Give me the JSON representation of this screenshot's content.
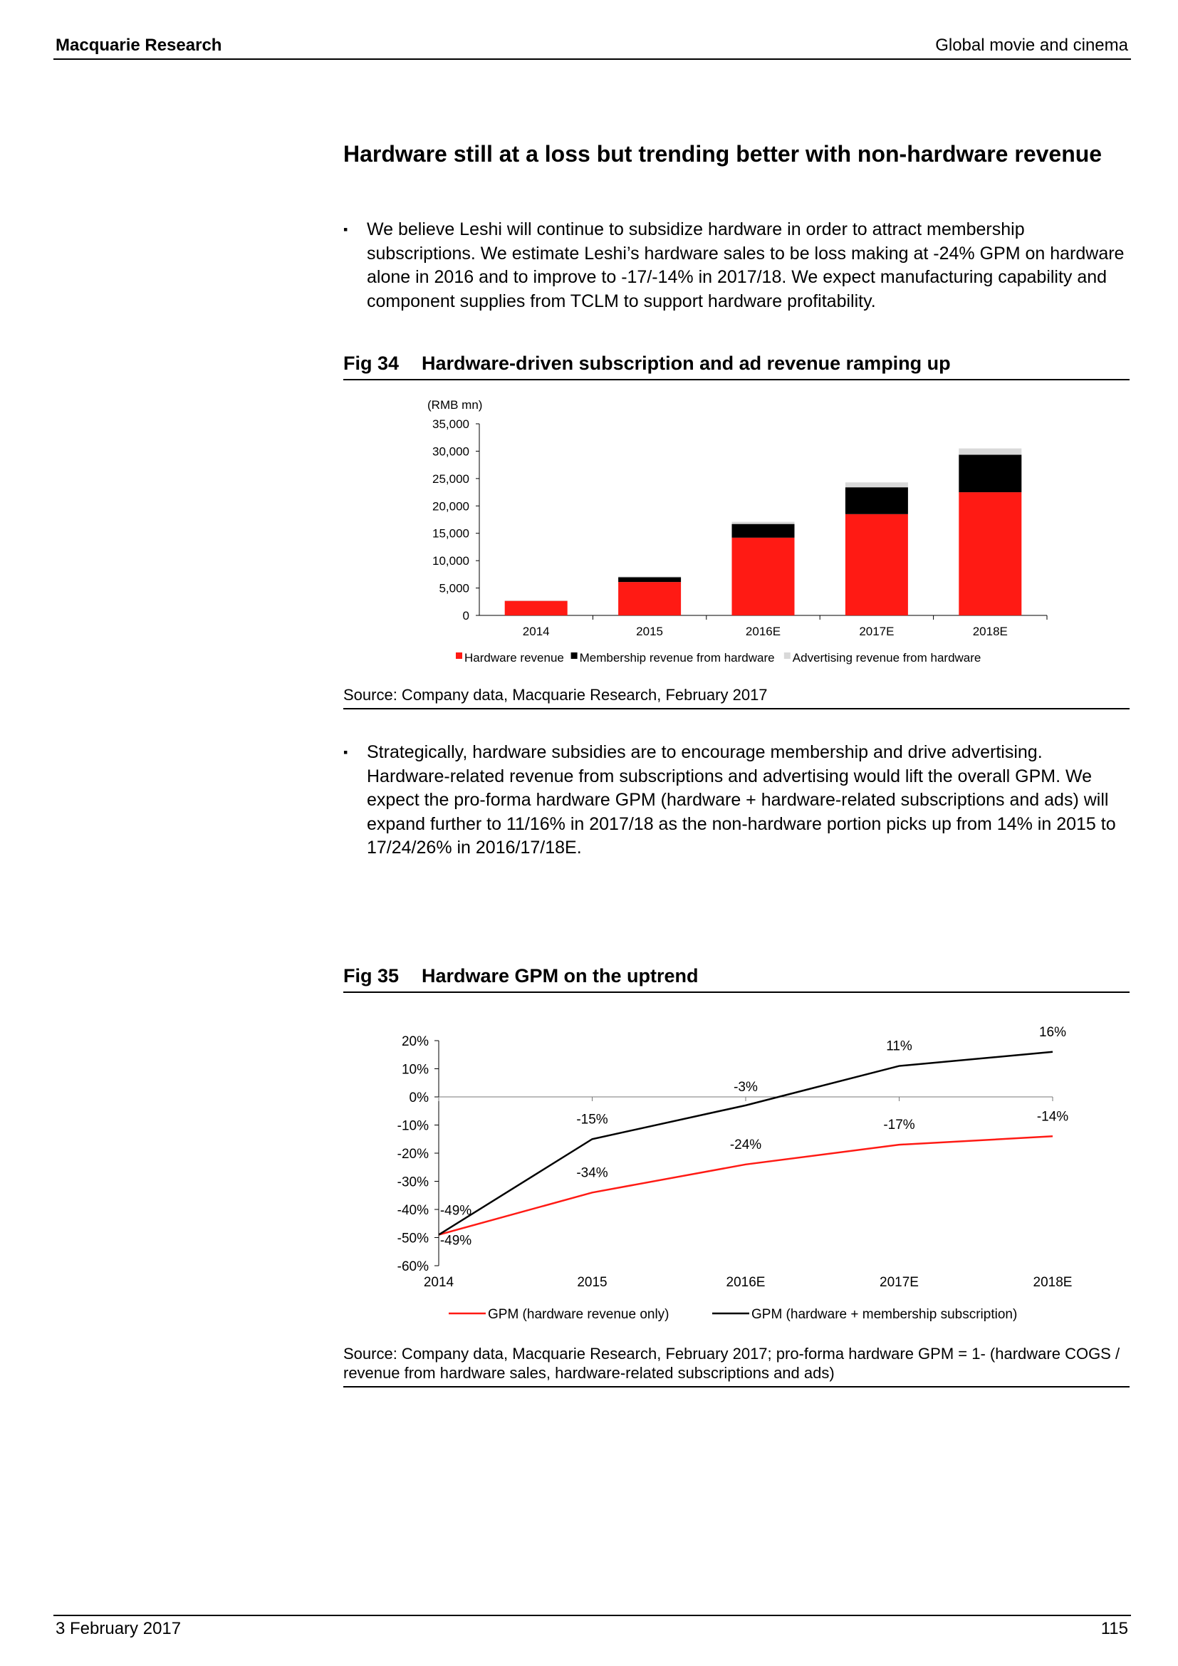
{
  "header": {
    "left": "Macquarie Research",
    "right": "Global movie and cinema"
  },
  "title": "Hardware still at a loss but trending better with non-hardware revenue",
  "bullets": [
    "We believe Leshi will continue to subsidize hardware in order to attract membership subscriptions. We estimate Leshi’s hardware sales to be loss making at -24% GPM on hardware alone in 2016 and to improve to -17/-14% in 2017/18. We expect manufacturing capability and component supplies from TCLM to support hardware profitability.",
    "Strategically, hardware subsidies are to encourage membership and drive advertising. Hardware-related revenue from subscriptions and advertising would lift the overall GPM. We expect the pro-forma hardware GPM (hardware + hardware-related subscriptions and ads) will expand further to 11/16% in 2017/18 as the non-hardware portion picks up from 14% in 2015 to 17/24/26% in 2016/17/18E."
  ],
  "bullet_glyph": "▪",
  "fig34": {
    "num": "Fig 34",
    "title": "Hardware-driven subscription and ad revenue ramping up",
    "source": "Source: Company data, Macquarie Research, February 2017"
  },
  "fig35": {
    "num": "Fig 35",
    "title": "Hardware GPM on the uptrend",
    "source": "Source: Company data, Macquarie Research, February 2017; pro-forma hardware GPM = 1- (hardware COGS / revenue from hardware sales, hardware-related subscriptions and ads)"
  },
  "footer": {
    "date": "3 February 2017",
    "page": "115"
  },
  "chart_data": [
    {
      "type": "bar",
      "stacked": true,
      "ylabel": "(RMB mn)",
      "ylim": [
        0,
        35000
      ],
      "yticks": [
        "0",
        "5,000",
        "10,000",
        "15,000",
        "20,000",
        "25,000",
        "30,000",
        "35,000"
      ],
      "categories": [
        "2014",
        "2015",
        "2016E",
        "2017E",
        "2018E"
      ],
      "series": [
        {
          "name": "Hardware revenue",
          "color": "#ff1a14",
          "values": [
            2650,
            6100,
            14200,
            18500,
            22500
          ]
        },
        {
          "name": "Membership revenue from hardware",
          "color": "#000000",
          "values": [
            0,
            870,
            2500,
            4900,
            6850
          ]
        },
        {
          "name": "Advertising revenue from hardware",
          "color": "#d9d9d9",
          "values": [
            100,
            130,
            400,
            900,
            1150
          ]
        }
      ],
      "legend": "bottom"
    },
    {
      "type": "line",
      "ylim": [
        -60,
        20
      ],
      "yticks": [
        "-60%",
        "-50%",
        "-40%",
        "-30%",
        "-20%",
        "-10%",
        "0%",
        "10%",
        "20%"
      ],
      "categories": [
        "2014",
        "2015",
        "2016E",
        "2017E",
        "2018E"
      ],
      "series": [
        {
          "name": "GPM (hardware revenue only)",
          "color": "#ff1a14",
          "values": [
            -49,
            -34,
            -24,
            -17,
            -14
          ],
          "labels": [
            "-49%",
            "-34%",
            "-24%",
            "-17%",
            "-14%"
          ]
        },
        {
          "name": "GPM (hardware + membership subscription)",
          "color": "#000000",
          "values": [
            -49,
            -15,
            -3,
            11,
            16
          ],
          "labels": [
            "-49%",
            "-15%",
            "-3%",
            "11%",
            "16%"
          ]
        }
      ],
      "legend": "bottom"
    }
  ]
}
